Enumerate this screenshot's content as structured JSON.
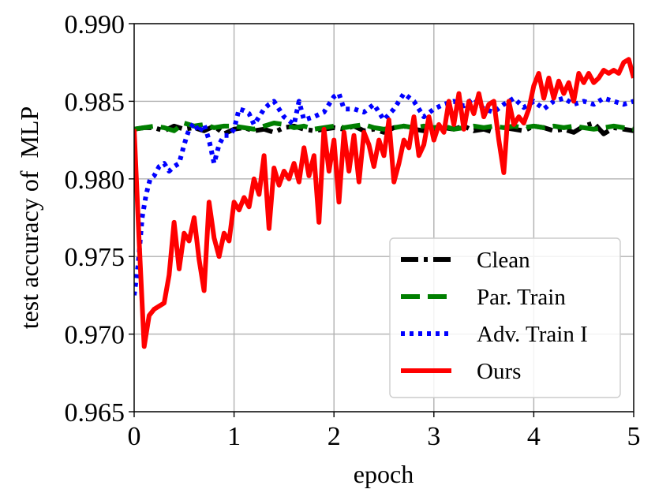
{
  "chart_data": {
    "type": "line",
    "title": "",
    "xlabel": "epoch",
    "ylabel": "test accuracy of  MLP",
    "xlim": [
      0,
      5
    ],
    "ylim": [
      0.965,
      0.99
    ],
    "xticks": [
      0,
      1,
      2,
      3,
      4,
      5
    ],
    "xtick_labels": [
      "0",
      "1",
      "2",
      "3",
      "4",
      "5"
    ],
    "yticks": [
      0.965,
      0.97,
      0.975,
      0.98,
      0.985,
      0.99
    ],
    "ytick_labels": [
      "0.965",
      "0.970",
      "0.975",
      "0.980",
      "0.985",
      "0.990"
    ],
    "grid": true,
    "legend_position": "bottom-right",
    "series": [
      {
        "name": "Clean",
        "color": "#000000",
        "dash": "dashdot",
        "x": [
          0,
          0.1,
          0.2,
          0.3,
          0.4,
          0.5,
          0.6,
          0.7,
          0.8,
          0.9,
          1.0,
          1.1,
          1.2,
          1.3,
          1.4,
          1.5,
          1.6,
          1.7,
          1.8,
          1.9,
          2.0,
          2.1,
          2.2,
          2.3,
          2.4,
          2.5,
          2.6,
          2.7,
          2.8,
          2.9,
          3.0,
          3.1,
          3.2,
          3.3,
          3.4,
          3.5,
          3.6,
          3.7,
          3.8,
          3.9,
          4.0,
          4.1,
          4.2,
          4.3,
          4.4,
          4.5,
          4.6,
          4.7,
          4.8,
          4.9,
          5.0
        ],
        "values": [
          0.9832,
          0.9833,
          0.9833,
          0.9831,
          0.9834,
          0.9832,
          0.9833,
          0.9831,
          0.9834,
          0.9829,
          0.9832,
          0.9833,
          0.9831,
          0.9832,
          0.983,
          0.9833,
          0.9834,
          0.9832,
          0.9831,
          0.9832,
          0.9833,
          0.9832,
          0.9834,
          0.9831,
          0.9832,
          0.983,
          0.9833,
          0.9834,
          0.9832,
          0.9831,
          0.9832,
          0.9833,
          0.9832,
          0.9834,
          0.9831,
          0.9832,
          0.983,
          0.9833,
          0.9832,
          0.9831,
          0.9834,
          0.9833,
          0.9831,
          0.9832,
          0.983,
          0.9834,
          0.9836,
          0.9829,
          0.9833,
          0.9832,
          0.9831
        ]
      },
      {
        "name": "Par. Train",
        "color": "#007f00",
        "dash": "dashed",
        "x": [
          0,
          0.1,
          0.2,
          0.3,
          0.4,
          0.5,
          0.6,
          0.7,
          0.8,
          0.9,
          1.0,
          1.1,
          1.2,
          1.3,
          1.4,
          1.5,
          1.6,
          1.7,
          1.8,
          1.9,
          2.0,
          2.1,
          2.2,
          2.3,
          2.4,
          2.5,
          2.6,
          2.7,
          2.8,
          2.9,
          3.0,
          3.1,
          3.2,
          3.3,
          3.4,
          3.5,
          3.6,
          3.7,
          3.8,
          3.9,
          4.0,
          4.1,
          4.2,
          4.3,
          4.4,
          4.5,
          4.6,
          4.7,
          4.8,
          4.9,
          5.0
        ],
        "values": [
          0.9832,
          0.9833,
          0.9834,
          0.9833,
          0.9831,
          0.9836,
          0.9834,
          0.9835,
          0.9833,
          0.9834,
          0.9834,
          0.9833,
          0.9832,
          0.9834,
          0.9836,
          0.9835,
          0.9833,
          0.9834,
          0.9832,
          0.9833,
          0.9834,
          0.9833,
          0.9834,
          0.9835,
          0.9833,
          0.9832,
          0.9833,
          0.9834,
          0.9833,
          0.9834,
          0.9833,
          0.9834,
          0.9832,
          0.9833,
          0.9834,
          0.9833,
          0.9834,
          0.9833,
          0.9834,
          0.9833,
          0.9834,
          0.9833,
          0.9834,
          0.9833,
          0.9834,
          0.9833,
          0.9832,
          0.9833,
          0.9834,
          0.9833,
          0.9832
        ]
      },
      {
        "name": "Adv. Train I",
        "color": "#0000ff",
        "dash": "dotted",
        "x": [
          0,
          0.04,
          0.08,
          0.12,
          0.16,
          0.2,
          0.25,
          0.3,
          0.35,
          0.4,
          0.45,
          0.5,
          0.55,
          0.6,
          0.65,
          0.7,
          0.75,
          0.8,
          0.85,
          0.9,
          0.95,
          1.0,
          1.05,
          1.1,
          1.15,
          1.2,
          1.25,
          1.3,
          1.35,
          1.4,
          1.5,
          1.6,
          1.65,
          1.7,
          1.8,
          1.9,
          2.0,
          2.05,
          2.1,
          2.2,
          2.3,
          2.4,
          2.5,
          2.6,
          2.7,
          2.8,
          2.9,
          3.0,
          3.1,
          3.2,
          3.3,
          3.4,
          3.5,
          3.6,
          3.7,
          3.8,
          3.9,
          4.0,
          4.1,
          4.2,
          4.3,
          4.4,
          4.5,
          4.6,
          4.7,
          4.8,
          4.9,
          5.0
        ],
        "values": [
          0.9725,
          0.9745,
          0.9775,
          0.979,
          0.98,
          0.9802,
          0.9808,
          0.981,
          0.9805,
          0.9808,
          0.981,
          0.9822,
          0.9832,
          0.9836,
          0.983,
          0.9835,
          0.9825,
          0.981,
          0.9822,
          0.9828,
          0.9828,
          0.9832,
          0.9845,
          0.9844,
          0.9842,
          0.9835,
          0.984,
          0.9845,
          0.9848,
          0.985,
          0.984,
          0.9835,
          0.985,
          0.9838,
          0.984,
          0.9843,
          0.9853,
          0.9855,
          0.9845,
          0.9845,
          0.9843,
          0.9848,
          0.9838,
          0.9845,
          0.9855,
          0.985,
          0.984,
          0.9845,
          0.9848,
          0.985,
          0.9847,
          0.9852,
          0.9845,
          0.9843,
          0.9848,
          0.9852,
          0.9846,
          0.985,
          0.9845,
          0.985,
          0.9852,
          0.9848,
          0.985,
          0.9848,
          0.9852,
          0.985,
          0.9848,
          0.985
        ]
      },
      {
        "name": "Ours",
        "color": "#ff0000",
        "dash": "solid",
        "x": [
          0,
          0.05,
          0.1,
          0.15,
          0.2,
          0.3,
          0.35,
          0.4,
          0.45,
          0.5,
          0.55,
          0.6,
          0.65,
          0.7,
          0.75,
          0.8,
          0.85,
          0.9,
          0.95,
          1.0,
          1.05,
          1.1,
          1.15,
          1.2,
          1.25,
          1.3,
          1.35,
          1.4,
          1.45,
          1.5,
          1.55,
          1.6,
          1.65,
          1.7,
          1.75,
          1.8,
          1.85,
          1.9,
          1.95,
          2.0,
          2.05,
          2.1,
          2.15,
          2.2,
          2.25,
          2.3,
          2.35,
          2.4,
          2.45,
          2.5,
          2.55,
          2.6,
          2.65,
          2.7,
          2.75,
          2.8,
          2.85,
          2.9,
          2.95,
          3.0,
          3.05,
          3.1,
          3.15,
          3.2,
          3.25,
          3.3,
          3.35,
          3.4,
          3.45,
          3.5,
          3.55,
          3.6,
          3.65,
          3.7,
          3.75,
          3.8,
          3.85,
          3.9,
          3.95,
          4.0,
          4.05,
          4.1,
          4.15,
          4.2,
          4.25,
          4.3,
          4.35,
          4.4,
          4.45,
          4.5,
          4.55,
          4.6,
          4.65,
          4.7,
          4.75,
          4.8,
          4.85,
          4.9,
          4.95,
          5.0
        ],
        "values": [
          0.9832,
          0.976,
          0.9692,
          0.9712,
          0.9716,
          0.972,
          0.9738,
          0.9772,
          0.9742,
          0.9765,
          0.976,
          0.9775,
          0.9748,
          0.9728,
          0.9785,
          0.9762,
          0.975,
          0.9765,
          0.976,
          0.9785,
          0.978,
          0.9788,
          0.9782,
          0.98,
          0.979,
          0.9815,
          0.9768,
          0.9807,
          0.9796,
          0.9805,
          0.98,
          0.981,
          0.9798,
          0.982,
          0.9802,
          0.9815,
          0.9772,
          0.9832,
          0.9805,
          0.9825,
          0.9785,
          0.983,
          0.9805,
          0.9828,
          0.9798,
          0.983,
          0.9822,
          0.9808,
          0.9825,
          0.9815,
          0.9838,
          0.9798,
          0.981,
          0.9825,
          0.982,
          0.984,
          0.9815,
          0.9822,
          0.984,
          0.9825,
          0.9835,
          0.983,
          0.985,
          0.9835,
          0.9855,
          0.9832,
          0.985,
          0.9842,
          0.9855,
          0.984,
          0.9848,
          0.985,
          0.9825,
          0.9804,
          0.985,
          0.9835,
          0.984,
          0.9836,
          0.9845,
          0.986,
          0.9868,
          0.9852,
          0.9865,
          0.9852,
          0.9863,
          0.9855,
          0.9862,
          0.985,
          0.9868,
          0.9862,
          0.9868,
          0.9862,
          0.9865,
          0.987,
          0.9868,
          0.987,
          0.9868,
          0.9875,
          0.9877,
          0.9865
        ]
      }
    ]
  }
}
